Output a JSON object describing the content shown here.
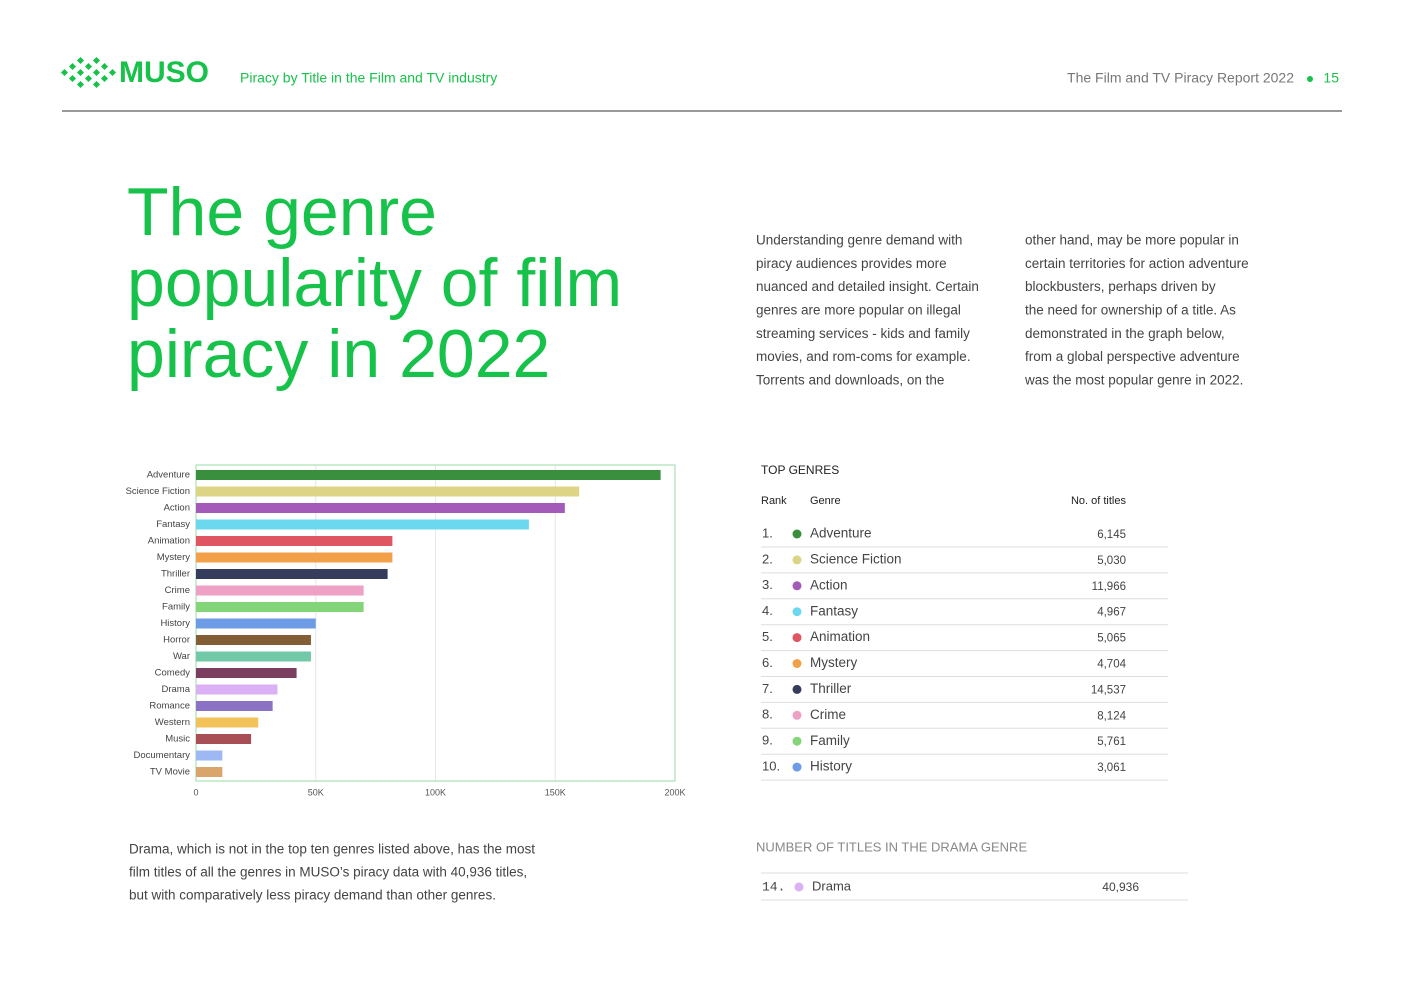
{
  "header": {
    "logo": "MUSO",
    "section": "Piracy by Title in the Film and TV industry",
    "report": "The Film and TV Piracy Report 2022",
    "page": "15"
  },
  "title": [
    "The genre",
    "popularity of film",
    "piracy in 2022"
  ],
  "intro": {
    "columns": [
      [
        "Understanding genre demand with",
        "piracy audiences provides more",
        "nuanced and detailed insight. Certain",
        "genres are more popular on illegal",
        "streaming services - kids and family",
        "movies, and rom-coms for example.",
        "Torrents and downloads, on the"
      ],
      [
        "other hand, may be more popular in",
        "certain territories for action adventure",
        "blockbusters, perhaps driven by",
        "the need for ownership of a title. As",
        "demonstrated in the graph below,",
        "from a global perspective adventure",
        "was the most popular genre in 2022."
      ]
    ]
  },
  "chart_data": {
    "type": "bar",
    "orientation": "horizontal",
    "categories": [
      "Adventure",
      "Science Fiction",
      "Action",
      "Fantasy",
      "Animation",
      "Mystery",
      "Thriller",
      "Crime",
      "Family",
      "History",
      "Horror",
      "War",
      "Comedy",
      "Drama",
      "Romance",
      "Western",
      "Music",
      "Documentary",
      "TV Movie"
    ],
    "values": [
      194000,
      160000,
      154000,
      139000,
      82000,
      82000,
      80000,
      70000,
      70000,
      50000,
      48000,
      48000,
      42000,
      34000,
      32000,
      26000,
      23000,
      11000,
      11000
    ],
    "colors": [
      "#3a8f3e",
      "#ddd585",
      "#a35ab8",
      "#6cd8f0",
      "#e05562",
      "#f2a04a",
      "#363d5c",
      "#eea0c5",
      "#84d47a",
      "#6e9be6",
      "#835d35",
      "#72c9a8",
      "#7c3e60",
      "#dcb0f5",
      "#8b72c4",
      "#f2c35a",
      "#a84f55",
      "#9db8f2",
      "#d9a56b"
    ],
    "xlim": [
      0,
      200000
    ],
    "xticks": [
      0,
      {
        "value": 50000,
        "label": "50K"
      },
      {
        "value": 100000,
        "label": "100K"
      },
      {
        "value": 150000,
        "label": "150K"
      },
      {
        "value": 200000,
        "label": "200K"
      }
    ],
    "grid": true
  },
  "top_genres": {
    "title": "TOP GENRES",
    "columns": [
      "Rank",
      "Genre",
      "No. of titles"
    ],
    "rows": [
      [
        "1.",
        "Adventure",
        "6,145"
      ],
      [
        "2.",
        "Science Fiction",
        "5,030"
      ],
      [
        "3.",
        "Action",
        "11,966"
      ],
      [
        "4.",
        "Fantasy",
        "4,967"
      ],
      [
        "5.",
        "Animation",
        "5,065"
      ],
      [
        "6.",
        "Mystery",
        "4,704"
      ],
      [
        "7.",
        "Thriller",
        "14,537"
      ],
      [
        "8.",
        "Crime",
        "8,124"
      ],
      [
        "9.",
        "Family",
        "5,761"
      ],
      [
        "10.",
        "History",
        "3,061"
      ]
    ]
  },
  "drama_note": [
    "Drama, which is not in the top ten genres listed above, has the most",
    "film titles of all the genres in MUSO’s piracy data with 40,936 titles,",
    "but with comparatively less piracy demand than other genres."
  ],
  "drama_table": {
    "title": "NUMBER OF TITLES IN THE DRAMA GENRE",
    "row": [
      "14.",
      "Drama",
      "40,936"
    ]
  }
}
